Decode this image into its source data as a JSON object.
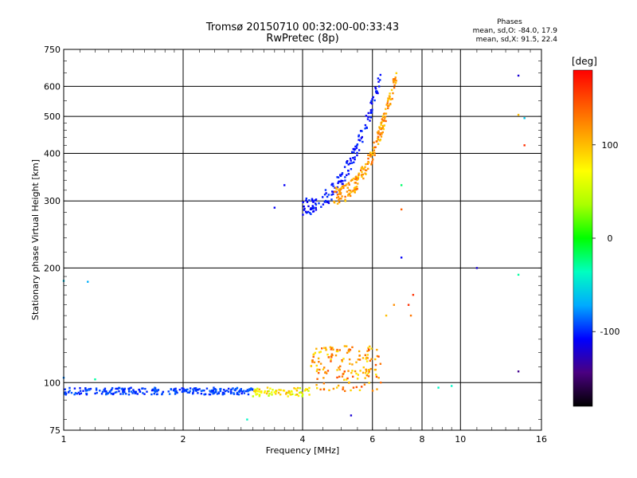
{
  "chart_data": {
    "type": "scatter",
    "title": "Tromsø 20150710 00:32:00-00:33:43",
    "subtitle": "RwPretec (8p)",
    "xlabel": "Frequency [MHz]",
    "ylabel": "Stationary phase Virtual Height [km]",
    "x_scale": "log2",
    "y_scale": "log",
    "xlim": [
      1,
      16
    ],
    "ylim": [
      75,
      750
    ],
    "x_ticks": [
      1,
      2,
      4,
      6,
      8,
      10,
      16
    ],
    "x_tick_labels": [
      "1",
      "2",
      "4",
      "6",
      "8",
      "10",
      "16"
    ],
    "y_ticks": [
      75,
      100,
      200,
      300,
      400,
      500,
      600,
      750
    ],
    "y_tick_labels": [
      "75",
      "100",
      "200",
      "300",
      "400",
      "500",
      "600",
      "750"
    ],
    "grid": true,
    "colorbar": {
      "label": "[deg]",
      "range": [
        -180,
        180
      ],
      "ticks": [
        -100,
        0,
        100
      ],
      "tick_labels": [
        "-100",
        "0",
        "100"
      ],
      "colors": [
        "#000000",
        "#4a0080",
        "#0000ff",
        "#00aaff",
        "#00ffc0",
        "#00ff00",
        "#aaff00",
        "#ffff00",
        "#ffaa00",
        "#ff5500",
        "#ff0000"
      ]
    },
    "phase_stats": {
      "title": "Phases",
      "o_text": "mean, sd,O: -84.0, 17.9",
      "x_text": "mean, sd,X:  91.5, 22.4"
    },
    "traces": [
      {
        "name": "",
        "x_range": [
          1.0,
          3.0
        ],
        "h_range": [
          93,
          97
        ],
        "phase_range": [
          -105,
          -85
        ],
        "count": 260
      },
      {
        "name": "",
        "x_range": [
          3.0,
          4.2
        ],
        "h_range": [
          92,
          97
        ],
        "phase_range": [
          40,
          110
        ],
        "count": 70
      },
      {
        "name": "",
        "x_range": [
          4.2,
          6.3
        ],
        "h_range": [
          95,
          125
        ],
        "phase_range": [
          80,
          150
        ],
        "count": 160
      },
      {
        "name": "",
        "x_range": [
          4.0,
          6.3
        ],
        "h_range": [
          290,
          640
        ],
        "phase_range": [
          -115,
          -95
        ],
        "count": 160
      },
      {
        "name": "",
        "x_range": [
          4.8,
          6.9
        ],
        "h_range": [
          310,
          650
        ],
        "phase_range": [
          90,
          140
        ],
        "count": 200
      }
    ],
    "scattered_points": [
      {
        "x": 1.0,
        "y": 185,
        "phase": -60
      },
      {
        "x": 1.15,
        "y": 184,
        "phase": -70
      },
      {
        "x": 1.0,
        "y": 103,
        "phase": -80
      },
      {
        "x": 1.2,
        "y": 102,
        "phase": -30
      },
      {
        "x": 3.4,
        "y": 288,
        "phase": -110
      },
      {
        "x": 3.6,
        "y": 330,
        "phase": -110
      },
      {
        "x": 7.1,
        "y": 213,
        "phase": -110
      },
      {
        "x": 7.1,
        "y": 330,
        "phase": -20
      },
      {
        "x": 7.1,
        "y": 285,
        "phase": 140
      },
      {
        "x": 11.0,
        "y": 200,
        "phase": -120
      },
      {
        "x": 14.0,
        "y": 640,
        "phase": -120
      },
      {
        "x": 14.0,
        "y": 505,
        "phase": 100
      },
      {
        "x": 14.5,
        "y": 495,
        "phase": -60
      },
      {
        "x": 14.5,
        "y": 420,
        "phase": 160
      },
      {
        "x": 14.0,
        "y": 192,
        "phase": -30
      },
      {
        "x": 14.0,
        "y": 107,
        "phase": -140
      },
      {
        "x": 8.8,
        "y": 97,
        "phase": -40
      },
      {
        "x": 9.5,
        "y": 98,
        "phase": -40
      },
      {
        "x": 2.9,
        "y": 80,
        "phase": -40
      },
      {
        "x": 5.3,
        "y": 82,
        "phase": -120
      },
      {
        "x": 7.6,
        "y": 170,
        "phase": 160
      },
      {
        "x": 7.5,
        "y": 150,
        "phase": 130
      },
      {
        "x": 7.4,
        "y": 160,
        "phase": 160
      },
      {
        "x": 6.5,
        "y": 150,
        "phase": 100
      },
      {
        "x": 6.8,
        "y": 160,
        "phase": 120
      }
    ]
  }
}
